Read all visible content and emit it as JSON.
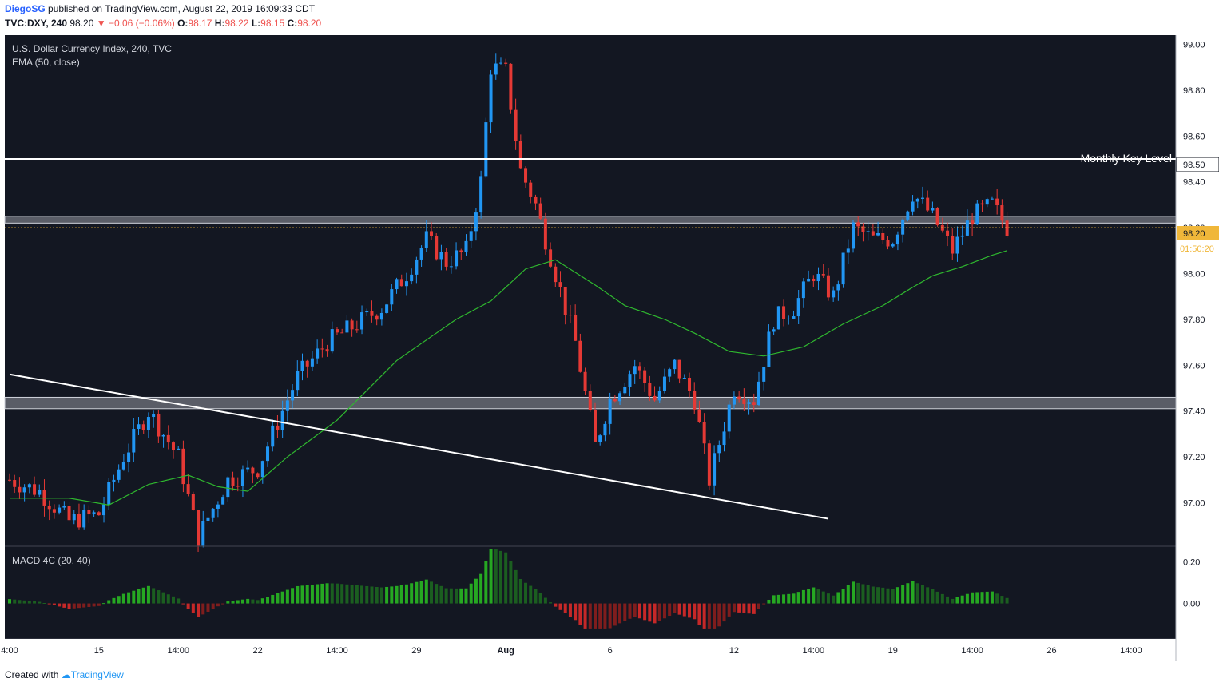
{
  "header": {
    "author": "DiegoSG",
    "published_text": "published on TradingView.com, August 22, 2019 16:09:33 CDT",
    "symbol": "TVC:DXY, 240",
    "last_price": "98.20",
    "change": "−0.06 (−0.06%)",
    "o_label": "O:",
    "o_value": "98.17",
    "h_label": "H:",
    "h_value": "98.22",
    "l_label": "L:",
    "l_value": "98.15",
    "c_label": "C:",
    "c_value": "98.20"
  },
  "legend": {
    "title": "U.S. Dollar Currency Index, 240, TVC",
    "ema": "EMA (50, close)",
    "macd": "MACD 4C (20, 40)"
  },
  "annotations": {
    "key_level_label": "Monthly Key Level",
    "key_level_price": "98.50",
    "last_price_label": "98.20",
    "countdown": "01:50:20"
  },
  "footer": {
    "created_with": "Created with",
    "brand": "TradingView"
  },
  "colors": {
    "background": "#131722",
    "up": "#2196f3",
    "down": "#e53935",
    "ema": "#2fb82f",
    "key_level": "#ffffff",
    "zone": "#9598a1",
    "price_line": "#f0b73a",
    "macd_green": "#26a822",
    "macd_dark_green": "#1b5e20",
    "macd_red": "#c62828",
    "macd_dark_red": "#7f1d1d"
  },
  "chart_data": {
    "type": "candlestick",
    "y_ticks": [
      97.0,
      97.2,
      97.4,
      97.6,
      97.8,
      98.0,
      98.2,
      98.4,
      98.6,
      98.8,
      99.0
    ],
    "ylim": [
      96.81,
      99.04
    ],
    "macd_ticks": [
      0.2,
      0.0
    ],
    "macd_ylim": [
      -0.17,
      0.27
    ],
    "x_ticks": [
      {
        "label": "4:00",
        "index": 0
      },
      {
        "label": "15",
        "index": 18
      },
      {
        "label": "14:00",
        "index": 34
      },
      {
        "label": "22",
        "index": 50
      },
      {
        "label": "14:00",
        "index": 66
      },
      {
        "label": "29",
        "index": 82
      },
      {
        "label": "Aug",
        "index": 100
      },
      {
        "label": "6",
        "index": 121
      },
      {
        "label": "12",
        "index": 146
      },
      {
        "label": "14:00",
        "index": 162
      },
      {
        "label": "19",
        "index": 178
      },
      {
        "label": "14:00",
        "index": 194
      },
      {
        "label": "26",
        "index": 210
      },
      {
        "label": "14:00",
        "index": 226
      }
    ],
    "zones": [
      {
        "from": 98.22,
        "to": 98.25
      },
      {
        "from": 97.41,
        "to": 97.46
      }
    ],
    "key_level": 98.5,
    "current_price": 98.2,
    "trendline": {
      "start": {
        "index": 0,
        "price": 97.56
      },
      "end": {
        "index": 165,
        "price": 96.93
      }
    },
    "ema_points": [
      [
        0,
        97.02
      ],
      [
        12,
        97.02
      ],
      [
        20,
        96.99
      ],
      [
        28,
        97.08
      ],
      [
        36,
        97.12
      ],
      [
        42,
        97.07
      ],
      [
        48,
        97.05
      ],
      [
        56,
        97.2
      ],
      [
        66,
        97.36
      ],
      [
        78,
        97.62
      ],
      [
        90,
        97.8
      ],
      [
        97,
        97.88
      ],
      [
        104,
        98.02
      ],
      [
        110,
        98.06
      ],
      [
        118,
        97.95
      ],
      [
        124,
        97.86
      ],
      [
        132,
        97.8
      ],
      [
        138,
        97.74
      ],
      [
        145,
        97.66
      ],
      [
        152,
        97.64
      ],
      [
        160,
        97.68
      ],
      [
        168,
        97.78
      ],
      [
        176,
        97.86
      ],
      [
        182,
        97.94
      ],
      [
        186,
        97.99
      ],
      [
        192,
        98.03
      ],
      [
        198,
        98.08
      ],
      [
        201,
        98.1
      ]
    ],
    "candle_anchors": [
      [
        0,
        97.1
      ],
      [
        6,
        97.05
      ],
      [
        12,
        96.92
      ],
      [
        18,
        96.95
      ],
      [
        23,
        97.2
      ],
      [
        28,
        97.4
      ],
      [
        34,
        97.2
      ],
      [
        38,
        96.85
      ],
      [
        44,
        97.1
      ],
      [
        50,
        97.15
      ],
      [
        54,
        97.35
      ],
      [
        58,
        97.55
      ],
      [
        64,
        97.7
      ],
      [
        70,
        97.78
      ],
      [
        75,
        97.85
      ],
      [
        80,
        98.0
      ],
      [
        84,
        98.15
      ],
      [
        88,
        98.05
      ],
      [
        92,
        98.1
      ],
      [
        95,
        98.4
      ],
      [
        97,
        98.9
      ],
      [
        100,
        98.88
      ],
      [
        103,
        98.45
      ],
      [
        106,
        98.3
      ],
      [
        110,
        98.0
      ],
      [
        114,
        97.7
      ],
      [
        118,
        97.25
      ],
      [
        121,
        97.45
      ],
      [
        126,
        97.6
      ],
      [
        130,
        97.45
      ],
      [
        134,
        97.6
      ],
      [
        138,
        97.45
      ],
      [
        141,
        97.1
      ],
      [
        146,
        97.5
      ],
      [
        150,
        97.45
      ],
      [
        154,
        97.8
      ],
      [
        158,
        97.85
      ],
      [
        162,
        98.0
      ],
      [
        166,
        97.9
      ],
      [
        170,
        98.2
      ],
      [
        174,
        98.15
      ],
      [
        178,
        98.15
      ],
      [
        182,
        98.35
      ],
      [
        186,
        98.25
      ],
      [
        190,
        98.1
      ],
      [
        194,
        98.25
      ],
      [
        198,
        98.3
      ],
      [
        201,
        98.2
      ]
    ],
    "candle_count": 202,
    "total_slots": 236
  }
}
